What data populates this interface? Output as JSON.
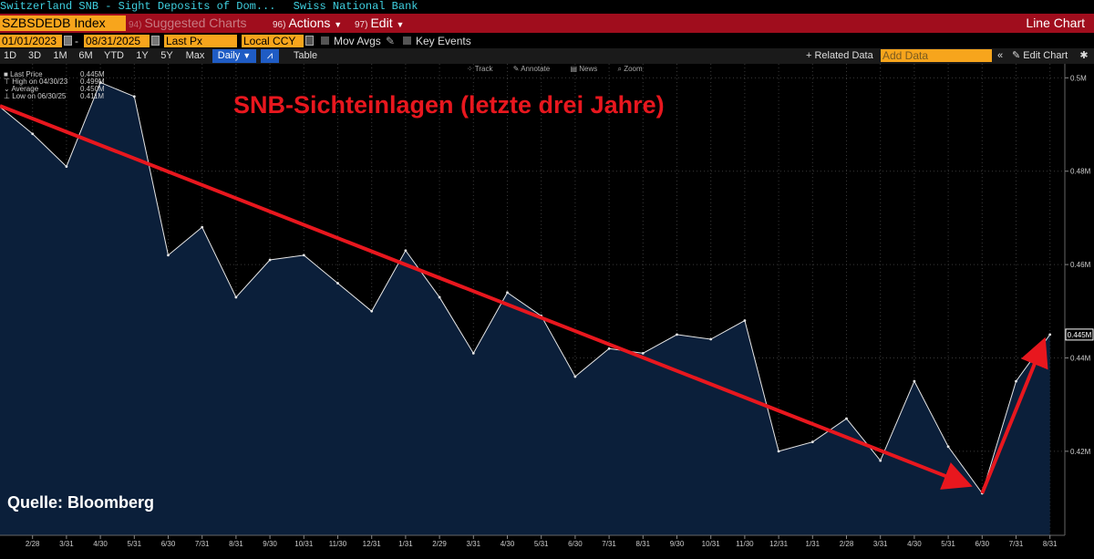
{
  "header": {
    "security_name": "Switzerland SNB - Sight Deposits of Dom...",
    "source_name": "Swiss National Bank"
  },
  "command_bar": {
    "ticker": "SZBSDEDB Index",
    "suggested": "Suggested Charts",
    "suggested_num": "94)",
    "actions": "Actions",
    "actions_num": "96)",
    "edit": "Edit",
    "edit_num": "97)",
    "chart_type": "Line Chart"
  },
  "params": {
    "start_date": "01/01/2023",
    "end_date": "08/31/2025",
    "field": "Last Px",
    "currency": "Local CCY",
    "mov_avgs": "Mov Avgs",
    "key_events": "Key Events"
  },
  "range": {
    "buttons": [
      "1D",
      "3D",
      "1M",
      "6M",
      "YTD",
      "1Y",
      "5Y",
      "Max"
    ],
    "frequency": "Daily",
    "table": "Table",
    "related": "+ Related Data",
    "add_data": "Add Data",
    "edit_chart": "Edit Chart"
  },
  "tools": [
    "Track",
    "Annotate",
    "News",
    "Zoom"
  ],
  "legend": [
    {
      "label": "Last Price",
      "value": "0.445M"
    },
    {
      "label": "High on 04/30/23",
      "value": "0.499M"
    },
    {
      "label": "Average",
      "value": "0.450M"
    },
    {
      "label": "Low on 06/30/25",
      "value": "0.411M"
    }
  ],
  "overlay_title": "SNB-Sichteinlagen (letzte drei Jahre)",
  "source_note": "Quelle: Bloomberg",
  "colors": {
    "area_fill": "#0b1f3a",
    "line": "#e6e6e6",
    "trend_arrow": "#e8171e",
    "command_bar": "#a00d1d",
    "field_orange": "#f7a51c"
  },
  "chart_data": {
    "type": "area",
    "x": [
      "1/31",
      "2/28",
      "3/31",
      "4/30",
      "5/31",
      "6/30",
      "7/31",
      "8/31",
      "9/30",
      "10/31",
      "11/30",
      "12/31",
      "1/31",
      "2/29",
      "3/31",
      "4/30",
      "5/31",
      "6/30",
      "7/31",
      "8/31",
      "9/30",
      "10/31",
      "11/30",
      "12/31",
      "1/31",
      "2/28",
      "3/31",
      "4/30",
      "5/31",
      "6/30",
      "7/31",
      "8/31"
    ],
    "y": [
      0.494,
      0.488,
      0.481,
      0.499,
      0.496,
      0.462,
      0.468,
      0.453,
      0.461,
      0.462,
      0.456,
      0.45,
      0.463,
      0.453,
      0.441,
      0.454,
      0.449,
      0.436,
      0.442,
      0.441,
      0.445,
      0.444,
      0.448,
      0.42,
      0.422,
      0.427,
      0.418,
      0.435,
      0.421,
      0.411,
      0.435,
      0.445
    ],
    "x_tick_labels": [
      "2/28",
      "3/31",
      "4/30",
      "5/31",
      "6/30",
      "7/31",
      "8/31",
      "9/30",
      "10/31",
      "11/30",
      "12/31",
      "1/31",
      "2/29",
      "3/31",
      "4/30",
      "5/31",
      "6/30",
      "7/31",
      "8/31",
      "9/30",
      "10/31",
      "11/30",
      "12/31",
      "1/31",
      "2/28",
      "3/31",
      "4/30",
      "5/31",
      "6/30",
      "7/31",
      "8/31"
    ],
    "y_ticks": [
      0.42,
      0.44,
      0.46,
      0.48,
      0.5
    ],
    "y_tick_labels": [
      "0.42M",
      "0.44M",
      "0.46M",
      "0.48M",
      "0.5M"
    ],
    "ylim": [
      0.402,
      0.503
    ],
    "last_value_label": "0.445M",
    "grid": true,
    "trend_lines": [
      {
        "from": {
          "x": "12/31",
          "y": 0.494
        },
        "to": {
          "x": "6/30",
          "y": 0.413
        }
      },
      {
        "from": {
          "x": "6/30",
          "y": 0.411
        },
        "to": {
          "x": "8/31",
          "y": 0.443
        }
      }
    ]
  }
}
